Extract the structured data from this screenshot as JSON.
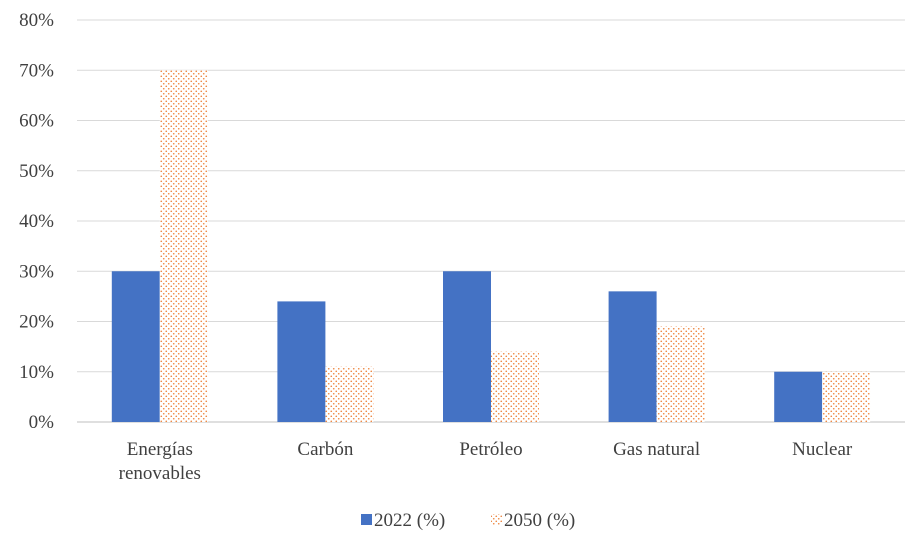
{
  "chart_data": {
    "type": "bar",
    "categories": [
      [
        "Energías",
        "renovables"
      ],
      [
        "Carbón"
      ],
      [
        "Petróleo"
      ],
      [
        "Gas natural"
      ],
      [
        "Nuclear"
      ]
    ],
    "series": [
      {
        "name": "2022 (%)",
        "values": [
          30,
          24,
          30,
          26,
          10
        ],
        "color": "#4472c4",
        "pattern": "solid"
      },
      {
        "name": "2050 (%)",
        "values": [
          70,
          11,
          14,
          19,
          10
        ],
        "color": "#ed7d31",
        "pattern": "dotted"
      }
    ],
    "ylim": [
      0,
      80
    ],
    "yticks": [
      "0%",
      "10%",
      "20%",
      "30%",
      "40%",
      "50%",
      "60%",
      "70%",
      "80%"
    ],
    "grid": true,
    "legend_position": "bottom",
    "title": "",
    "xlabel": "",
    "ylabel": ""
  }
}
